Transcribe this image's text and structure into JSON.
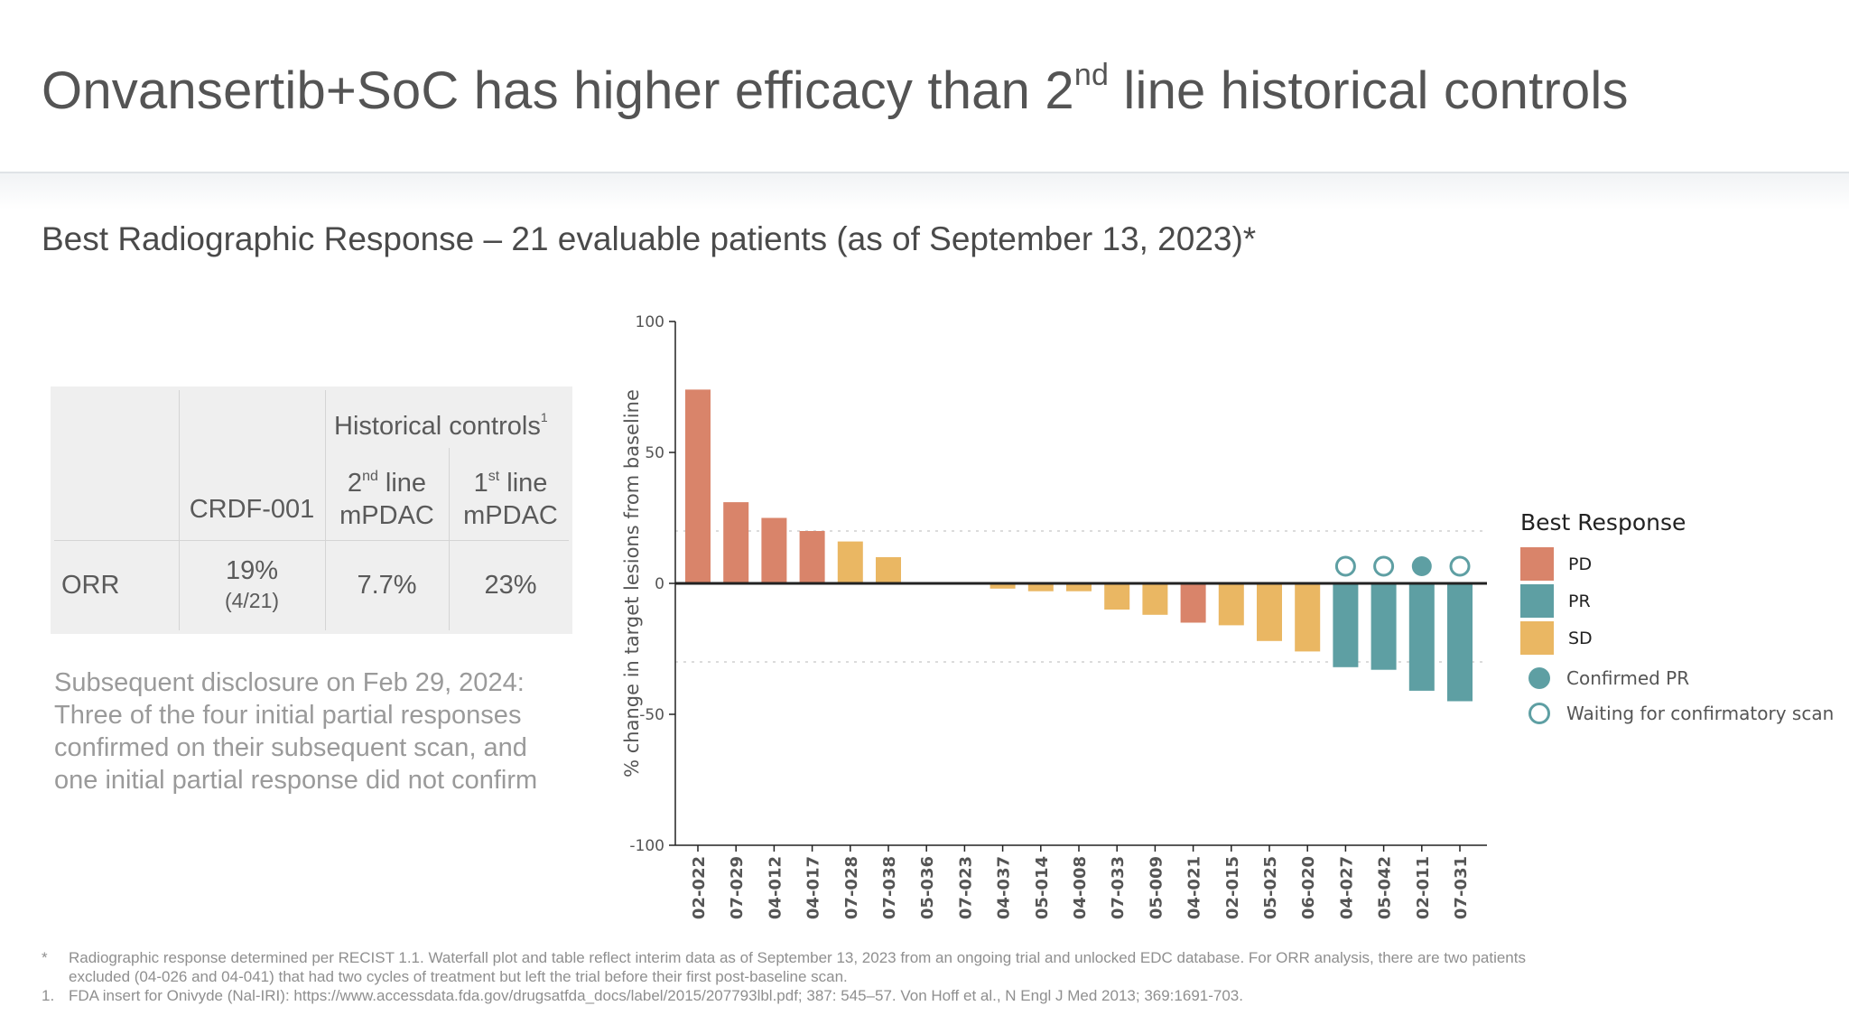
{
  "header": {
    "title_before": "Onvansertib+SoC has higher efficacy than 2",
    "title_sup": "nd",
    "title_after": " line historical controls"
  },
  "subtitle": "Best Radiographic Response – 21 evaluable patients (as of September 13, 2023)*",
  "table": {
    "group_header": "Historical controls",
    "group_header_sup": "1",
    "col1": "CRDF-001",
    "col2_num": "2",
    "col2_sup": "nd",
    "col2_line": " line",
    "col2_sub": "mPDAC",
    "col3_num": "1",
    "col3_sup": "st",
    "col3_line": " line",
    "col3_sub": "mPDAC",
    "row_label": "ORR",
    "crdf_value": "19%",
    "crdf_detail": "(4/21)",
    "second_line_value": "7.7%",
    "first_line_value": "23%"
  },
  "disclosure": [
    "Subsequent disclosure on Feb 29, 2024:",
    "Three of the four initial partial responses",
    "confirmed on their subsequent scan, and",
    "one initial partial response did not confirm"
  ],
  "chart_data": {
    "type": "bar",
    "title": "",
    "ylabel": "% change in target lesions from baseline",
    "xlabel": "",
    "ylim": [
      -100,
      100
    ],
    "yticks": [
      100,
      50,
      0,
      -50,
      -100
    ],
    "ytick_labels": [
      "100",
      "50",
      "0",
      "-50",
      "-100"
    ],
    "reference_lines": [
      20,
      -30
    ],
    "categories": [
      "02-022",
      "07-029",
      "04-012",
      "04-017",
      "07-028",
      "07-038",
      "05-036",
      "07-023",
      "04-037",
      "05-014",
      "04-008",
      "07-033",
      "05-009",
      "04-021",
      "02-015",
      "05-025",
      "06-020",
      "04-027",
      "05-042",
      "02-011",
      "07-031"
    ],
    "values": [
      74,
      31,
      25,
      20,
      16,
      10,
      0,
      0,
      -2,
      -3,
      -3,
      -10,
      -12,
      -15,
      -16,
      -22,
      -26,
      -32,
      -33,
      -41,
      -45
    ],
    "response": [
      "PD",
      "PD",
      "PD",
      "PD",
      "SD",
      "SD",
      "SD",
      "SD",
      "SD",
      "SD",
      "SD",
      "SD",
      "SD",
      "PD",
      "SD",
      "SD",
      "SD",
      "PR",
      "PR",
      "PR",
      "PR"
    ],
    "markers": [
      "",
      "",
      "",
      "",
      "",
      "",
      "",
      "",
      "",
      "",
      "",
      "",
      "",
      "",
      "",
      "",
      "",
      "waiting",
      "waiting",
      "confirmed",
      "waiting"
    ],
    "colors": {
      "PD": "#d9846a",
      "PR": "#5e9fa3",
      "SD": "#eab763"
    },
    "legend": {
      "title": "Best Response",
      "items": [
        "PD",
        "PR",
        "SD"
      ],
      "marker_items": [
        "Confirmed PR",
        "Waiting for confirmatory scan"
      ]
    }
  },
  "footnotes": {
    "star_mark": "*",
    "star_line1": "Radiographic response determined per RECIST 1.1. Waterfall plot and table reflect interim data as of September 13, 2023 from an ongoing trial and unlocked EDC database. For ORR analysis, there are two patients",
    "star_line2": "excluded (04-026 and 04-041) that had two cycles of treatment but left the trial before their first post-baseline scan.",
    "one_mark": "1.",
    "one_line": "FDA insert for Onivyde (Nal-IRI): https://www.accessdata.fda.gov/drugsatfda_docs/label/2015/207793lbl.pdf; 387: 545–57. Von Hoff et al., N Engl J Med 2013; 369:1691-703."
  }
}
